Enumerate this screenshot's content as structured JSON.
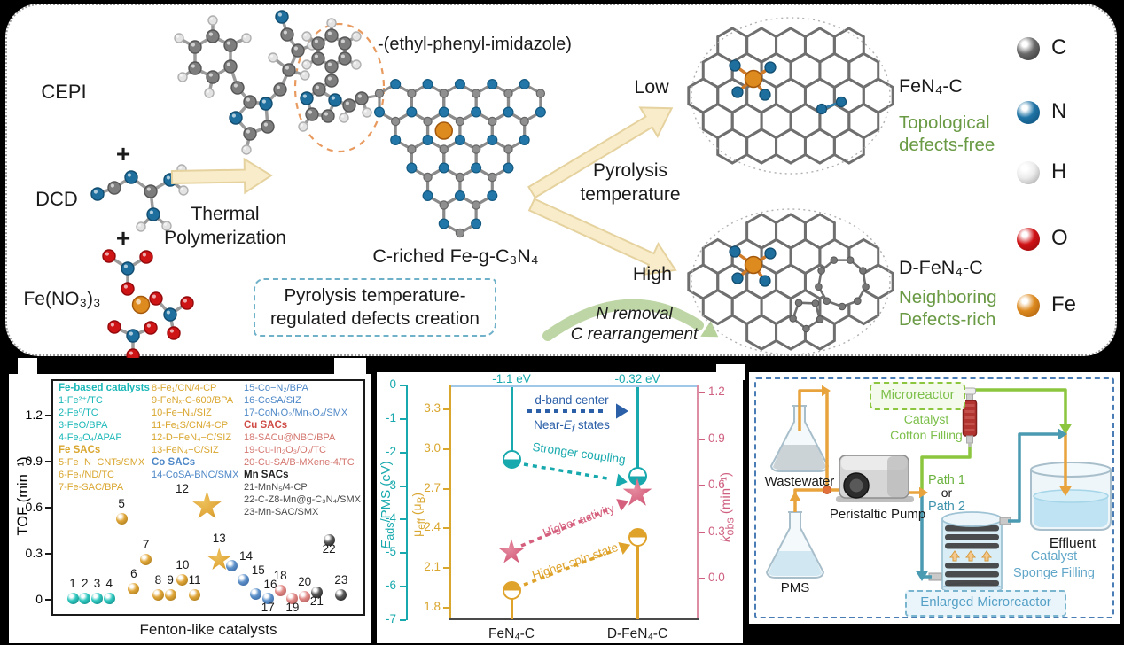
{
  "scheme": {
    "reactant_labels": [
      "CEPI",
      "DCD",
      "Fe(NO₃)₃"
    ],
    "plus": "+",
    "arrow_lines": [
      "Thermal",
      "Polymerization"
    ],
    "pendant_label": "-(ethyl-phenyl-imidazole)",
    "product_label": "C-riched Fe-g-C₃N₄",
    "note_lines": [
      "Pyrolysis temperature-",
      "regulated defects creation"
    ],
    "branch_lines": [
      "Pyrolysis",
      "temperature"
    ],
    "low": "Low",
    "high": "High",
    "green_arrow_lines": [
      "N removal",
      "C rearrangement"
    ],
    "product_top": {
      "name": "FeN₄-C",
      "desc": [
        "Topological",
        "defects-free"
      ],
      "desc_color": "#6a9a44"
    },
    "product_bottom": {
      "name": "D-FeN₄-C",
      "desc": [
        "Neighboring",
        "Defects-rich"
      ],
      "desc_color": "#6a9a44"
    },
    "atom_legend": [
      {
        "symbol": "C",
        "c1": "#6a6a6a",
        "c2": "#2f2f2f"
      },
      {
        "symbol": "N",
        "c1": "#1f74a6",
        "c2": "#0d4a73"
      },
      {
        "symbol": "H",
        "c1": "#ececec",
        "c2": "#9d9d9d"
      },
      {
        "symbol": "O",
        "c1": "#d01215",
        "c2": "#8c0a0c"
      },
      {
        "symbol": "Fe",
        "c1": "#dd8a1f",
        "c2": "#a35a0a"
      }
    ]
  },
  "chart_data": [
    {
      "id": "tof",
      "type": "scatter",
      "xlabel": "Fenton-like catalysts",
      "ylabel": "TOF (min⁻¹)",
      "ylim": [
        -0.07,
        1.35
      ],
      "yticks": [
        "0",
        "0.3",
        "0.6",
        "0.9",
        "1.2"
      ],
      "ytick_values": [
        0,
        0.3,
        0.6,
        0.9,
        1.2
      ],
      "points": [
        {
          "n": 1,
          "tof": 0.01,
          "g": "fe",
          "lp": "above"
        },
        {
          "n": 2,
          "tof": 0.01,
          "g": "fe",
          "lp": "above"
        },
        {
          "n": 3,
          "tof": 0.01,
          "g": "fe",
          "lp": "above"
        },
        {
          "n": 4,
          "tof": 0.01,
          "g": "fe",
          "lp": "above"
        },
        {
          "n": 5,
          "tof": 0.53,
          "g": "fesac",
          "lp": "above"
        },
        {
          "n": 6,
          "tof": 0.07,
          "g": "fesac",
          "lp": "above"
        },
        {
          "n": 7,
          "tof": 0.26,
          "g": "fesac",
          "lp": "above"
        },
        {
          "n": 8,
          "tof": 0.03,
          "g": "fesac",
          "lp": "above"
        },
        {
          "n": 9,
          "tof": 0.03,
          "g": "fesac",
          "lp": "above"
        },
        {
          "n": 10,
          "tof": 0.13,
          "g": "fesac",
          "lp": "above"
        },
        {
          "n": 11,
          "tof": 0.03,
          "g": "fesac",
          "lp": "above"
        },
        {
          "n": 12,
          "tof": 0.61,
          "g": "fesac",
          "lp": "left",
          "marker": "star",
          "size": 34
        },
        {
          "n": 13,
          "tof": 0.26,
          "g": "fesac",
          "lp": "above",
          "marker": "star",
          "size": 27
        },
        {
          "n": 14,
          "tof": 0.22,
          "g": "co",
          "lp": "right"
        },
        {
          "n": 15,
          "tof": 0.13,
          "g": "co",
          "lp": "right"
        },
        {
          "n": 16,
          "tof": 0.04,
          "g": "co",
          "lp": "right"
        },
        {
          "n": 17,
          "tof": 0.01,
          "g": "co",
          "lp": "below"
        },
        {
          "n": 18,
          "tof": 0.06,
          "g": "cu",
          "lp": "above"
        },
        {
          "n": 19,
          "tof": 0.01,
          "g": "cu",
          "lp": "below"
        },
        {
          "n": 20,
          "tof": 0.02,
          "g": "cu",
          "lp": "above"
        },
        {
          "n": 21,
          "tof": 0.05,
          "g": "mn",
          "lp": "below"
        },
        {
          "n": 22,
          "tof": 0.39,
          "g": "mn",
          "lp": "below"
        },
        {
          "n": 23,
          "tof": 0.03,
          "g": "mn",
          "lp": "above"
        }
      ],
      "group_colors": {
        "fe": [
          "#2fc8c0",
          "#0e7c78"
        ],
        "fesac": [
          "#e0a73a",
          "#9a6d12"
        ],
        "co": [
          "#5f92ca",
          "#2d5a96"
        ],
        "cu": [
          "#e18a87",
          "#a14e4c"
        ],
        "mn": [
          "#5a5a5a",
          "#111111"
        ]
      },
      "legend_columns": [
        [
          {
            "t": "Fe-based catalysts",
            "c": "#1cb8b8",
            "b": true
          },
          {
            "t": "1-Fe²⁺/TC",
            "c": "#1cb8b8"
          },
          {
            "t": "2-Fe⁰/TC",
            "c": "#1cb8b8"
          },
          {
            "t": "3-FeO/BPA",
            "c": "#1cb8b8"
          },
          {
            "t": "4-Fe₃O₄/APAP",
            "c": "#1cb8b8"
          },
          {
            "t": "Fe SACs",
            "c": "#d9a62e",
            "b": true
          },
          {
            "t": "5-Fe−N−CNTs/SMX",
            "c": "#d9a62e"
          },
          {
            "t": "6-Fe₁/ND/TC",
            "c": "#d9a62e"
          },
          {
            "t": "7-Fe-SAC/BPA",
            "c": "#d9a62e"
          }
        ],
        [
          {
            "t": "8-Fe₁/CN/4-CP",
            "c": "#d9a62e"
          },
          {
            "t": "9-FeNₓ-C-600/BPA",
            "c": "#d9a62e"
          },
          {
            "t": "10-Fe−N₄/SIZ",
            "c": "#d9a62e"
          },
          {
            "t": "11-Fe₁S/CN/4-CP",
            "c": "#d9a62e"
          },
          {
            "t": "12-D−FeN₄−C/SIZ",
            "c": "#d9a62e"
          },
          {
            "t": "13-FeN₄−C/SIZ",
            "c": "#d9a62e"
          },
          {
            "t": "Co SACs",
            "c": "#4d87c7",
            "b": true
          },
          {
            "t": "14-CoSA-BNC/SMX",
            "c": "#4d87c7"
          }
        ],
        [
          {
            "t": "15-Co−N₂/BPA",
            "c": "#4d87c7"
          },
          {
            "t": "16-CoSA/SIZ",
            "c": "#4d87c7"
          },
          {
            "t": "17-CoN₁O₂/Mn₃O₄/SMX",
            "c": "#4d87c7"
          },
          {
            "t": "Cu SACs",
            "c": "#cf4b45",
            "b": true
          },
          {
            "t": "18-SACu@NBC/BPA",
            "c": "#d4766f"
          },
          {
            "t": "19-Cu-In₂O₃/Oᵥ/TC",
            "c": "#d4766f"
          },
          {
            "t": "20-Cu-SA/B-MXene-4/TC",
            "c": "#d4766f"
          },
          {
            "t": "Mn SACs",
            "c": "#222222",
            "b": true
          },
          {
            "t": "21-MnN₅/4-CP",
            "c": "#4a4a4a"
          },
          {
            "t": "22-C-Z8-Mn@g-C₃N₄/SMX",
            "c": "#4a4a4a"
          },
          {
            "t": "23-Mn-SAC/SMX",
            "c": "#4a4a4a"
          }
        ]
      ]
    },
    {
      "id": "dft",
      "type": "lollipop-comparison",
      "categories": [
        "FeN₄-C",
        "D-FeN₄-C"
      ],
      "top_values": [
        "-1.1 eV",
        "-0.32 eV"
      ],
      "series": [
        {
          "name": "Eads/PMS (eV)",
          "values": [
            -2.2,
            -2.7
          ]
        },
        {
          "name": "mu_eff (muB)",
          "values": [
            1.93,
            2.33
          ]
        },
        {
          "name": "k_obs (min-1)",
          "values": [
            0.17,
            0.55
          ]
        }
      ],
      "axis_eads": {
        "pre": "E",
        "sub": "ads",
        "post": "/PMS (eV)",
        "ticks": [
          0,
          -1,
          -2,
          -3,
          -4,
          -5,
          -6,
          -7
        ]
      },
      "axis_mueff": {
        "p1": "μ",
        "s1": "eff",
        "p2": " (μ",
        "s2": "B",
        "p3": ")",
        "ticks": [
          "3.3",
          "3.0",
          "2.7",
          "2.4",
          "2.1",
          "1.8"
        ]
      },
      "axis_kobs": {
        "pre": "k",
        "sub": "obs",
        "post": " (min⁻¹)",
        "ticks": [
          "1.2",
          "0.9",
          "0.6",
          "0.3",
          "0.0"
        ]
      },
      "annotations": {
        "dband_top": "d-band center",
        "near1": "Near-",
        "near_e": "E",
        "near_f": "f",
        "near2": " states",
        "coupling": "Stronger coupling",
        "activity": "Higher activity",
        "spin": "Higher spin state"
      }
    }
  ],
  "flow": {
    "wastewater": "Wastewater",
    "pms": "PMS",
    "pump": "Peristaltic Pump",
    "microreactor": "Microreactor",
    "cotton": [
      "Catalyst",
      "Cotton Filling"
    ],
    "path1": "Path 1",
    "or": "or",
    "path2": "Path 2",
    "effluent": "Effluent",
    "sponge": [
      "Catalyst",
      "Sponge Filling"
    ],
    "enlarged": "Enlarged Microreactor"
  }
}
